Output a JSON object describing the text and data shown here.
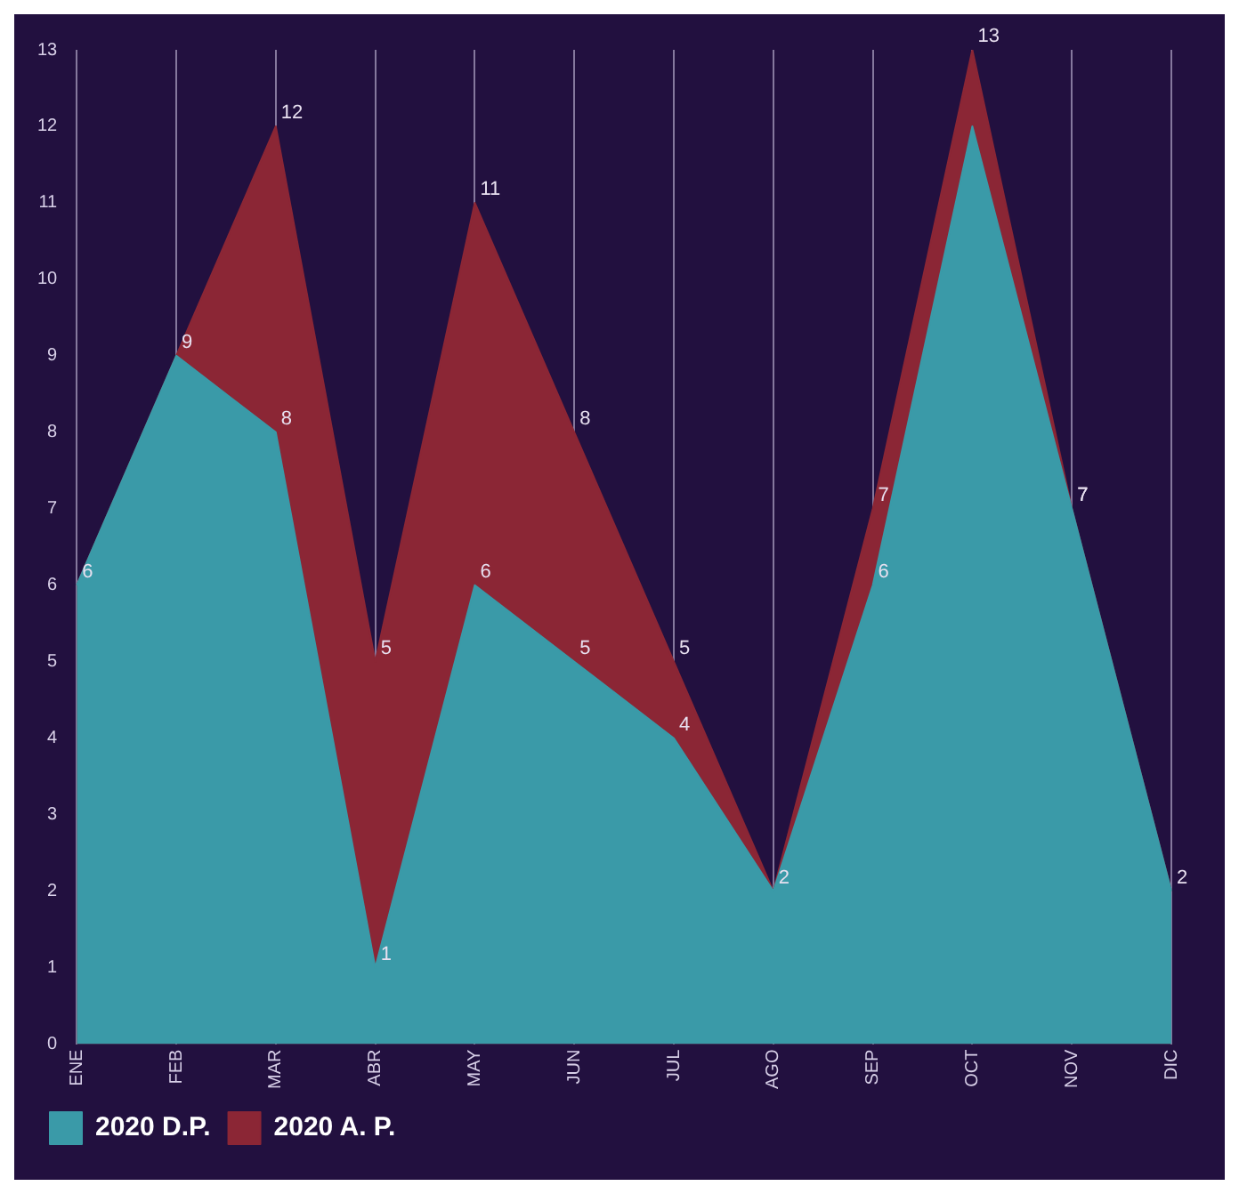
{
  "chart_data": {
    "type": "area",
    "categories": [
      "ENE",
      "FEB",
      "MAR",
      "ABR",
      "MAY",
      "JUN",
      "JUL",
      "AGO",
      "SEP",
      "OCT",
      "NOV",
      "DIC"
    ],
    "series": [
      {
        "name": "2020 A. P.",
        "color": "#8b2635",
        "values": [
          6,
          9,
          12,
          5,
          11,
          8,
          5,
          2,
          7,
          13,
          7,
          2
        ],
        "value_labels": [
          null,
          "9",
          "12",
          "5",
          "11",
          "8",
          "5",
          "2",
          "7",
          "13",
          "7",
          "2"
        ]
      },
      {
        "name": "2020 D.P.",
        "color": "#3a9aa8",
        "values": [
          6,
          9,
          8,
          1,
          6,
          5,
          4,
          2,
          6,
          12,
          7,
          2
        ],
        "value_labels": [
          "6",
          null,
          "8",
          "1",
          "6",
          "5",
          "4",
          null,
          "6",
          null,
          "7",
          null
        ]
      }
    ],
    "ylim": [
      0,
      13
    ],
    "yticks": [
      0,
      1,
      2,
      3,
      4,
      5,
      6,
      7,
      8,
      9,
      10,
      11,
      12,
      13
    ],
    "grid": "x",
    "legend": "bottom left"
  }
}
